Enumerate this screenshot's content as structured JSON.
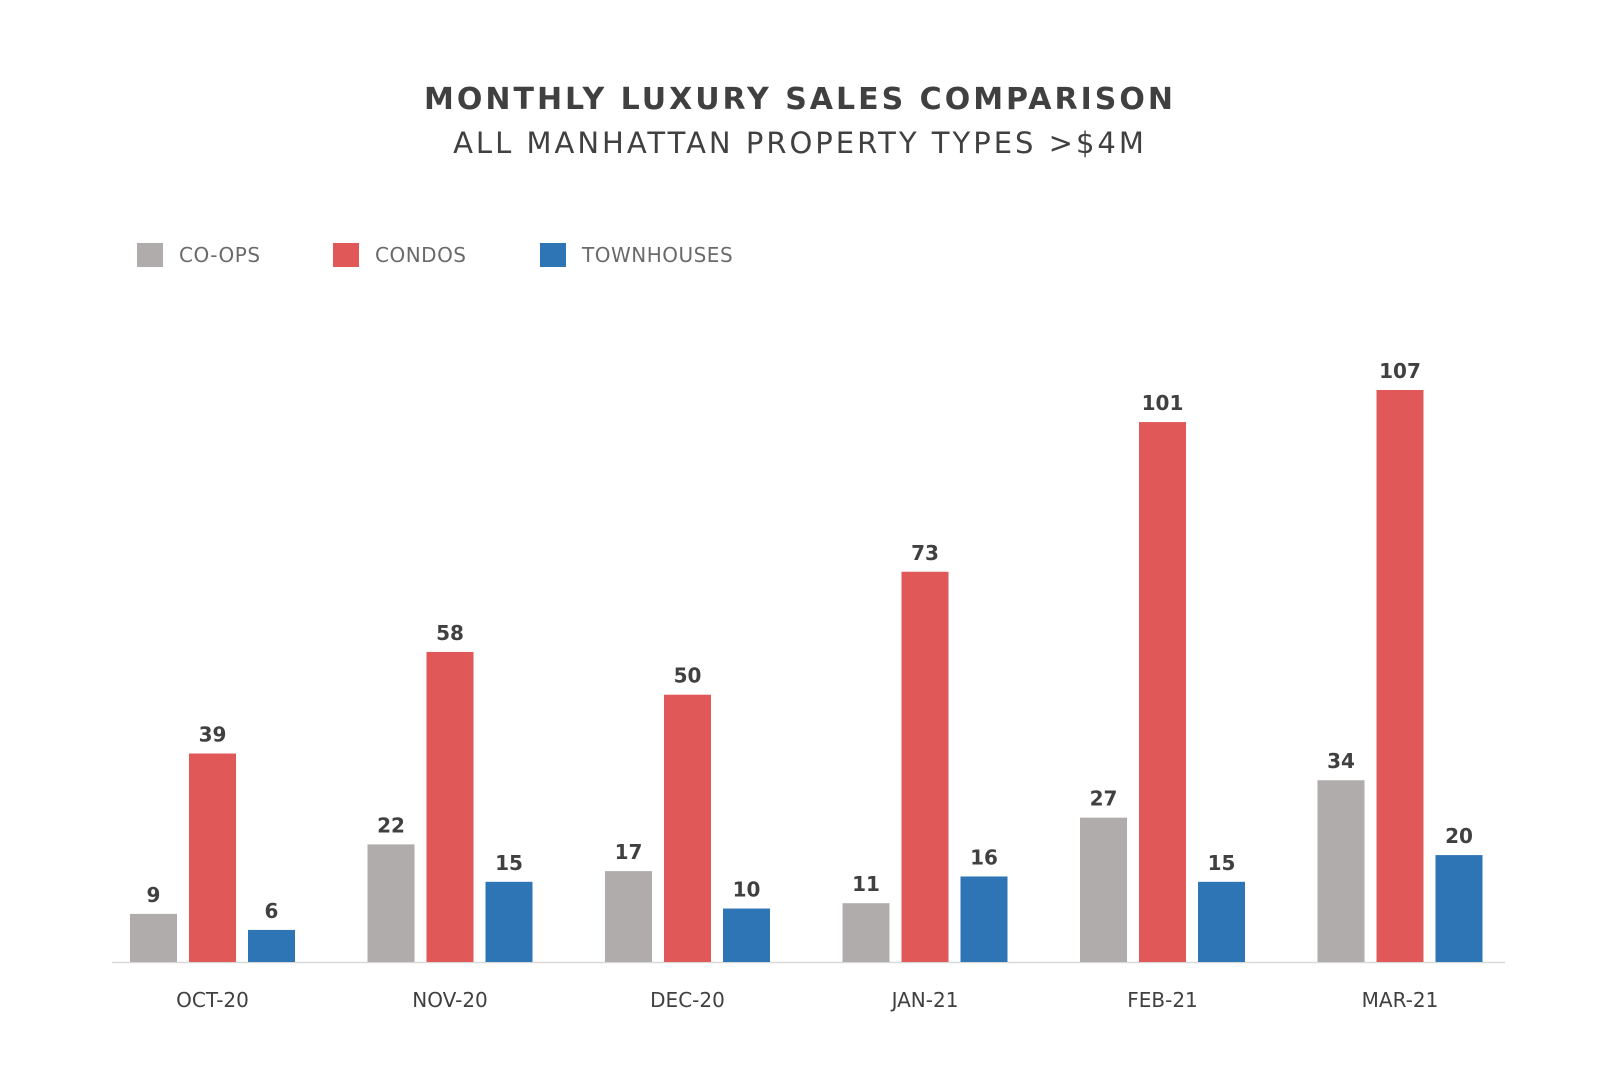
{
  "chart_data": {
    "type": "bar",
    "title": "MONTHLY LUXURY SALES COMPARISON",
    "subtitle": "ALL MANHATTAN PROPERTY TYPES >$4M",
    "categories": [
      "OCT-20",
      "NOV-20",
      "DEC-20",
      "JAN-21",
      "FEB-21",
      "MAR-21"
    ],
    "series": [
      {
        "name": "CO-OPS",
        "color": "#b0acab",
        "values": [
          9,
          22,
          17,
          11,
          27,
          34
        ]
      },
      {
        "name": "CONDOS",
        "color": "#e05858",
        "values": [
          39,
          58,
          50,
          73,
          101,
          107
        ]
      },
      {
        "name": "TOWNHOUSES",
        "color": "#2e75b6",
        "values": [
          6,
          15,
          10,
          16,
          15,
          20
        ]
      }
    ],
    "ylim": [
      0,
      107
    ],
    "legend_position": "top-left",
    "grid": false
  }
}
